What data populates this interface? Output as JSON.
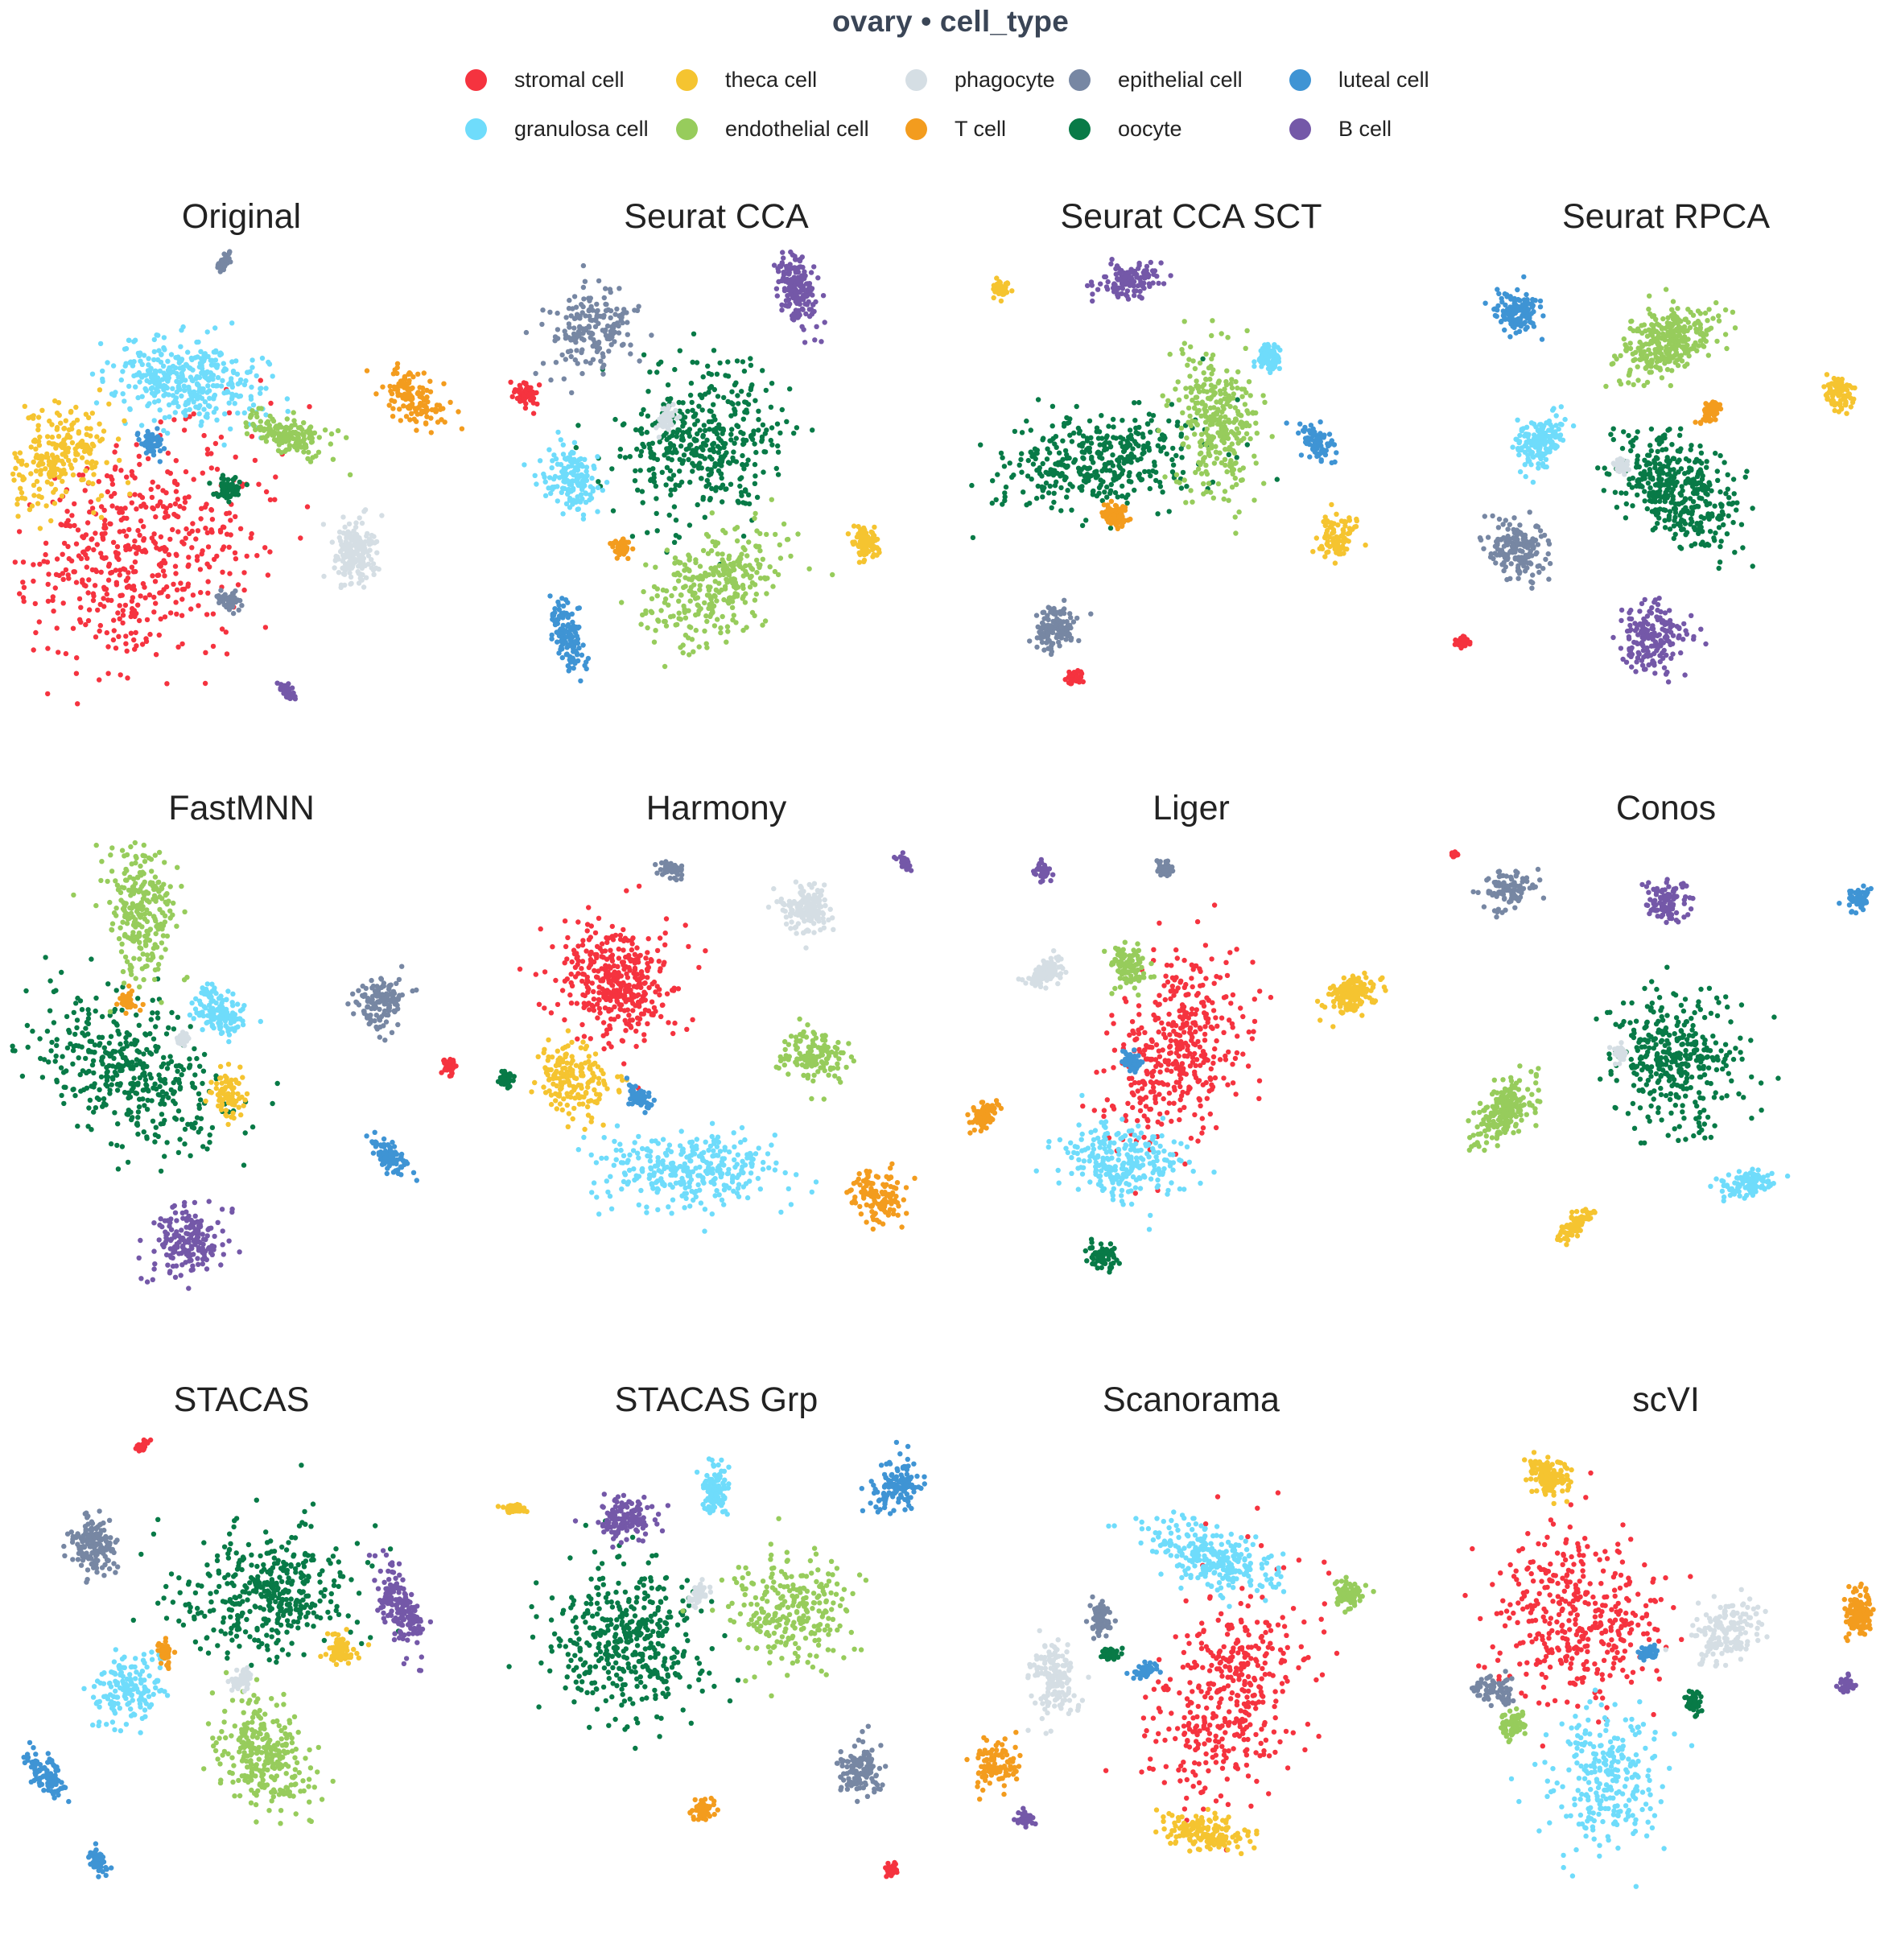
{
  "title": "ovary • cell_type",
  "chart_data": {
    "type": "scatter",
    "legend": {
      "placement": "top",
      "entries": [
        {
          "name": "stromal cell",
          "color": "#f5333f"
        },
        {
          "name": "theca cell",
          "color": "#f5c430"
        },
        {
          "name": "phagocyte",
          "color": "#d5dee4"
        },
        {
          "name": "epithelial cell",
          "color": "#7787a3"
        },
        {
          "name": "luteal cell",
          "color": "#3f94d4"
        },
        {
          "name": "granulosa cell",
          "color": "#6fdcfb"
        },
        {
          "name": "endothelial cell",
          "color": "#97cc5c"
        },
        {
          "name": "T cell",
          "color": "#f39c1e"
        },
        {
          "name": "oocyte",
          "color": "#087a47"
        },
        {
          "name": "B cell",
          "color": "#7458a8"
        }
      ]
    },
    "grid": false,
    "axes": false,
    "panels": [
      {
        "title": "Original",
        "clusters": [
          {
            "type": "stromal cell",
            "x": 0.28,
            "y": 0.66,
            "size": 0.2
          },
          {
            "type": "granulosa cell",
            "x": 0.38,
            "y": 0.28,
            "size": 0.14
          },
          {
            "type": "theca cell",
            "x": 0.09,
            "y": 0.45,
            "size": 0.09
          },
          {
            "type": "endothelial cell",
            "x": 0.6,
            "y": 0.4,
            "size": 0.06
          },
          {
            "type": "T cell",
            "x": 0.88,
            "y": 0.32,
            "size": 0.05
          },
          {
            "type": "phagocyte",
            "x": 0.75,
            "y": 0.66,
            "size": 0.07
          },
          {
            "type": "epithelial cell",
            "x": 0.47,
            "y": 0.77,
            "size": 0.02
          },
          {
            "type": "epithelial cell",
            "x": 0.46,
            "y": 0.02,
            "size": 0.015
          },
          {
            "type": "oocyte",
            "x": 0.47,
            "y": 0.52,
            "size": 0.025
          },
          {
            "type": "luteal cell",
            "x": 0.3,
            "y": 0.42,
            "size": 0.025
          },
          {
            "type": "B cell",
            "x": 0.6,
            "y": 0.97,
            "size": 0.02
          }
        ]
      },
      {
        "title": "Seurat CCA",
        "clusters": [
          {
            "type": "oocyte",
            "x": 0.47,
            "y": 0.42,
            "size": 0.16
          },
          {
            "type": "B cell",
            "x": 0.68,
            "y": 0.08,
            "size": 0.07
          },
          {
            "type": "epithelial cell",
            "x": 0.22,
            "y": 0.17,
            "size": 0.07
          },
          {
            "type": "granulosa cell",
            "x": 0.18,
            "y": 0.5,
            "size": 0.06
          },
          {
            "type": "endothelial cell",
            "x": 0.5,
            "y": 0.74,
            "size": 0.12
          },
          {
            "type": "luteal cell",
            "x": 0.17,
            "y": 0.85,
            "size": 0.05
          },
          {
            "type": "theca cell",
            "x": 0.83,
            "y": 0.64,
            "size": 0.035
          },
          {
            "type": "stromal cell",
            "x": 0.08,
            "y": 0.31,
            "size": 0.02
          },
          {
            "type": "T cell",
            "x": 0.29,
            "y": 0.65,
            "size": 0.02
          },
          {
            "type": "phagocyte",
            "x": 0.39,
            "y": 0.37,
            "size": 0.02
          }
        ]
      },
      {
        "title": "Seurat CCA SCT",
        "clusters": [
          {
            "type": "oocyte",
            "x": 0.3,
            "y": 0.46,
            "size": 0.15
          },
          {
            "type": "endothelial cell",
            "x": 0.55,
            "y": 0.36,
            "size": 0.12
          },
          {
            "type": "B cell",
            "x": 0.36,
            "y": 0.06,
            "size": 0.05
          },
          {
            "type": "granulosa cell",
            "x": 0.67,
            "y": 0.23,
            "size": 0.03
          },
          {
            "type": "luteal cell",
            "x": 0.78,
            "y": 0.42,
            "size": 0.035
          },
          {
            "type": "theca cell",
            "x": 0.82,
            "y": 0.63,
            "size": 0.035
          },
          {
            "type": "theca cell",
            "x": 0.08,
            "y": 0.08,
            "size": 0.02
          },
          {
            "type": "epithelial cell",
            "x": 0.2,
            "y": 0.83,
            "size": 0.05
          },
          {
            "type": "stromal cell",
            "x": 0.24,
            "y": 0.94,
            "size": 0.015
          },
          {
            "type": "T cell",
            "x": 0.33,
            "y": 0.58,
            "size": 0.03
          }
        ]
      },
      {
        "title": "Seurat RPCA",
        "clusters": [
          {
            "type": "oocyte",
            "x": 0.52,
            "y": 0.52,
            "size": 0.15
          },
          {
            "type": "endothelial cell",
            "x": 0.5,
            "y": 0.2,
            "size": 0.12
          },
          {
            "type": "B cell",
            "x": 0.47,
            "y": 0.85,
            "size": 0.07
          },
          {
            "type": "luteal cell",
            "x": 0.17,
            "y": 0.13,
            "size": 0.05
          },
          {
            "type": "granulosa cell",
            "x": 0.22,
            "y": 0.42,
            "size": 0.06
          },
          {
            "type": "epithelial cell",
            "x": 0.17,
            "y": 0.66,
            "size": 0.07
          },
          {
            "type": "theca cell",
            "x": 0.88,
            "y": 0.31,
            "size": 0.035
          },
          {
            "type": "T cell",
            "x": 0.6,
            "y": 0.35,
            "size": 0.03
          },
          {
            "type": "stromal cell",
            "x": 0.05,
            "y": 0.86,
            "size": 0.015
          },
          {
            "type": "phagocyte",
            "x": 0.4,
            "y": 0.47,
            "size": 0.02
          }
        ]
      },
      {
        "title": "FastMNN",
        "clusters": [
          {
            "type": "oocyte",
            "x": 0.25,
            "y": 0.5,
            "size": 0.16
          },
          {
            "type": "endothelial cell",
            "x": 0.28,
            "y": 0.14,
            "size": 0.1
          },
          {
            "type": "B cell",
            "x": 0.38,
            "y": 0.88,
            "size": 0.07
          },
          {
            "type": "granulosa cell",
            "x": 0.45,
            "y": 0.37,
            "size": 0.05
          },
          {
            "type": "theca cell",
            "x": 0.47,
            "y": 0.55,
            "size": 0.03
          },
          {
            "type": "epithelial cell",
            "x": 0.81,
            "y": 0.35,
            "size": 0.05
          },
          {
            "type": "stromal cell",
            "x": 0.96,
            "y": 0.49,
            "size": 0.015
          },
          {
            "type": "luteal cell",
            "x": 0.83,
            "y": 0.69,
            "size": 0.035
          },
          {
            "type": "phagocyte",
            "x": 0.37,
            "y": 0.43,
            "size": 0.02
          },
          {
            "type": "T cell",
            "x": 0.25,
            "y": 0.35,
            "size": 0.02
          }
        ]
      },
      {
        "title": "Harmony",
        "clusters": [
          {
            "type": "stromal cell",
            "x": 0.28,
            "y": 0.3,
            "size": 0.15
          },
          {
            "type": "granulosa cell",
            "x": 0.43,
            "y": 0.72,
            "size": 0.12
          },
          {
            "type": "theca cell",
            "x": 0.19,
            "y": 0.52,
            "size": 0.07
          },
          {
            "type": "phagocyte",
            "x": 0.7,
            "y": 0.14,
            "size": 0.06
          },
          {
            "type": "endothelial cell",
            "x": 0.72,
            "y": 0.47,
            "size": 0.05
          },
          {
            "type": "T cell",
            "x": 0.86,
            "y": 0.78,
            "size": 0.05
          },
          {
            "type": "epithelial cell",
            "x": 0.4,
            "y": 0.05,
            "size": 0.02
          },
          {
            "type": "B cell",
            "x": 0.92,
            "y": 0.04,
            "size": 0.015
          },
          {
            "type": "oocyte",
            "x": 0.03,
            "y": 0.52,
            "size": 0.015
          },
          {
            "type": "luteal cell",
            "x": 0.33,
            "y": 0.56,
            "size": 0.02
          }
        ]
      },
      {
        "title": "Liger",
        "clusters": [
          {
            "type": "stromal cell",
            "x": 0.47,
            "y": 0.45,
            "size": 0.16
          },
          {
            "type": "granulosa cell",
            "x": 0.35,
            "y": 0.7,
            "size": 0.1
          },
          {
            "type": "theca cell",
            "x": 0.86,
            "y": 0.33,
            "size": 0.06
          },
          {
            "type": "endothelial cell",
            "x": 0.36,
            "y": 0.27,
            "size": 0.04
          },
          {
            "type": "phagocyte",
            "x": 0.18,
            "y": 0.28,
            "size": 0.04
          },
          {
            "type": "T cell",
            "x": 0.04,
            "y": 0.6,
            "size": 0.035
          },
          {
            "type": "oocyte",
            "x": 0.3,
            "y": 0.91,
            "size": 0.025
          },
          {
            "type": "epithelial cell",
            "x": 0.44,
            "y": 0.05,
            "size": 0.02
          },
          {
            "type": "B cell",
            "x": 0.17,
            "y": 0.06,
            "size": 0.015
          },
          {
            "type": "luteal cell",
            "x": 0.37,
            "y": 0.48,
            "size": 0.02
          }
        ]
      },
      {
        "title": "Conos",
        "clusters": [
          {
            "type": "oocyte",
            "x": 0.52,
            "y": 0.48,
            "size": 0.14
          },
          {
            "type": "endothelial cell",
            "x": 0.14,
            "y": 0.59,
            "size": 0.08
          },
          {
            "type": "B cell",
            "x": 0.5,
            "y": 0.12,
            "size": 0.04
          },
          {
            "type": "granulosa cell",
            "x": 0.68,
            "y": 0.75,
            "size": 0.04
          },
          {
            "type": "theca cell",
            "x": 0.3,
            "y": 0.84,
            "size": 0.03
          },
          {
            "type": "epithelial cell",
            "x": 0.15,
            "y": 0.1,
            "size": 0.04
          },
          {
            "type": "luteal cell",
            "x": 0.93,
            "y": 0.12,
            "size": 0.02
          },
          {
            "type": "stromal cell",
            "x": 0.03,
            "y": 0.02,
            "size": 0.01
          },
          {
            "type": "phagocyte",
            "x": 0.4,
            "y": 0.46,
            "size": 0.015
          }
        ]
      },
      {
        "title": "STACAS",
        "clusters": [
          {
            "type": "oocyte",
            "x": 0.55,
            "y": 0.35,
            "size": 0.15
          },
          {
            "type": "B cell",
            "x": 0.85,
            "y": 0.38,
            "size": 0.07
          },
          {
            "type": "endothelial cell",
            "x": 0.55,
            "y": 0.7,
            "size": 0.11
          },
          {
            "type": "granulosa cell",
            "x": 0.25,
            "y": 0.56,
            "size": 0.06
          },
          {
            "type": "epithelial cell",
            "x": 0.17,
            "y": 0.24,
            "size": 0.06
          },
          {
            "type": "luteal cell",
            "x": 0.07,
            "y": 0.75,
            "size": 0.04
          },
          {
            "type": "luteal cell",
            "x": 0.18,
            "y": 0.94,
            "size": 0.02
          },
          {
            "type": "stromal cell",
            "x": 0.28,
            "y": 0.02,
            "size": 0.015
          },
          {
            "type": "theca cell",
            "x": 0.72,
            "y": 0.47,
            "size": 0.03
          },
          {
            "type": "T cell",
            "x": 0.33,
            "y": 0.48,
            "size": 0.02
          },
          {
            "type": "phagocyte",
            "x": 0.5,
            "y": 0.54,
            "size": 0.02
          }
        ]
      },
      {
        "title": "STACAS Grp",
        "clusters": [
          {
            "type": "oocyte",
            "x": 0.3,
            "y": 0.45,
            "size": 0.16
          },
          {
            "type": "endothelial cell",
            "x": 0.66,
            "y": 0.39,
            "size": 0.1
          },
          {
            "type": "B cell",
            "x": 0.3,
            "y": 0.18,
            "size": 0.05
          },
          {
            "type": "granulosa cell",
            "x": 0.5,
            "y": 0.12,
            "size": 0.04
          },
          {
            "type": "luteal cell",
            "x": 0.9,
            "y": 0.11,
            "size": 0.05
          },
          {
            "type": "epithelial cell",
            "x": 0.82,
            "y": 0.74,
            "size": 0.05
          },
          {
            "type": "theca cell",
            "x": 0.05,
            "y": 0.16,
            "size": 0.02
          },
          {
            "type": "stromal cell",
            "x": 0.89,
            "y": 0.96,
            "size": 0.015
          },
          {
            "type": "T cell",
            "x": 0.47,
            "y": 0.83,
            "size": 0.02
          },
          {
            "type": "phagocyte",
            "x": 0.46,
            "y": 0.35,
            "size": 0.02
          }
        ]
      },
      {
        "title": "Scanorama",
        "clusters": [
          {
            "type": "stromal cell",
            "x": 0.58,
            "y": 0.57,
            "size": 0.16
          },
          {
            "type": "granulosa cell",
            "x": 0.55,
            "y": 0.27,
            "size": 0.1
          },
          {
            "type": "theca cell",
            "x": 0.53,
            "y": 0.88,
            "size": 0.06
          },
          {
            "type": "phagocyte",
            "x": 0.2,
            "y": 0.54,
            "size": 0.06
          },
          {
            "type": "T cell",
            "x": 0.07,
            "y": 0.73,
            "size": 0.04
          },
          {
            "type": "endothelial cell",
            "x": 0.85,
            "y": 0.35,
            "size": 0.03
          },
          {
            "type": "epithelial cell",
            "x": 0.3,
            "y": 0.4,
            "size": 0.03
          },
          {
            "type": "B cell",
            "x": 0.13,
            "y": 0.85,
            "size": 0.015
          },
          {
            "type": "oocyte",
            "x": 0.32,
            "y": 0.48,
            "size": 0.02
          },
          {
            "type": "luteal cell",
            "x": 0.4,
            "y": 0.52,
            "size": 0.02
          }
        ]
      },
      {
        "title": "scVI",
        "clusters": [
          {
            "type": "stromal cell",
            "x": 0.3,
            "y": 0.4,
            "size": 0.15
          },
          {
            "type": "granulosa cell",
            "x": 0.36,
            "y": 0.76,
            "size": 0.1
          },
          {
            "type": "theca cell",
            "x": 0.24,
            "y": 0.09,
            "size": 0.06
          },
          {
            "type": "phagocyte",
            "x": 0.63,
            "y": 0.43,
            "size": 0.06
          },
          {
            "type": "T cell",
            "x": 0.93,
            "y": 0.39,
            "size": 0.05
          },
          {
            "type": "epithelial cell",
            "x": 0.12,
            "y": 0.56,
            "size": 0.03
          },
          {
            "type": "endothelial cell",
            "x": 0.16,
            "y": 0.64,
            "size": 0.03
          },
          {
            "type": "B cell",
            "x": 0.9,
            "y": 0.55,
            "size": 0.015
          },
          {
            "type": "oocyte",
            "x": 0.56,
            "y": 0.59,
            "size": 0.02
          },
          {
            "type": "luteal cell",
            "x": 0.46,
            "y": 0.48,
            "size": 0.02
          }
        ]
      }
    ]
  }
}
